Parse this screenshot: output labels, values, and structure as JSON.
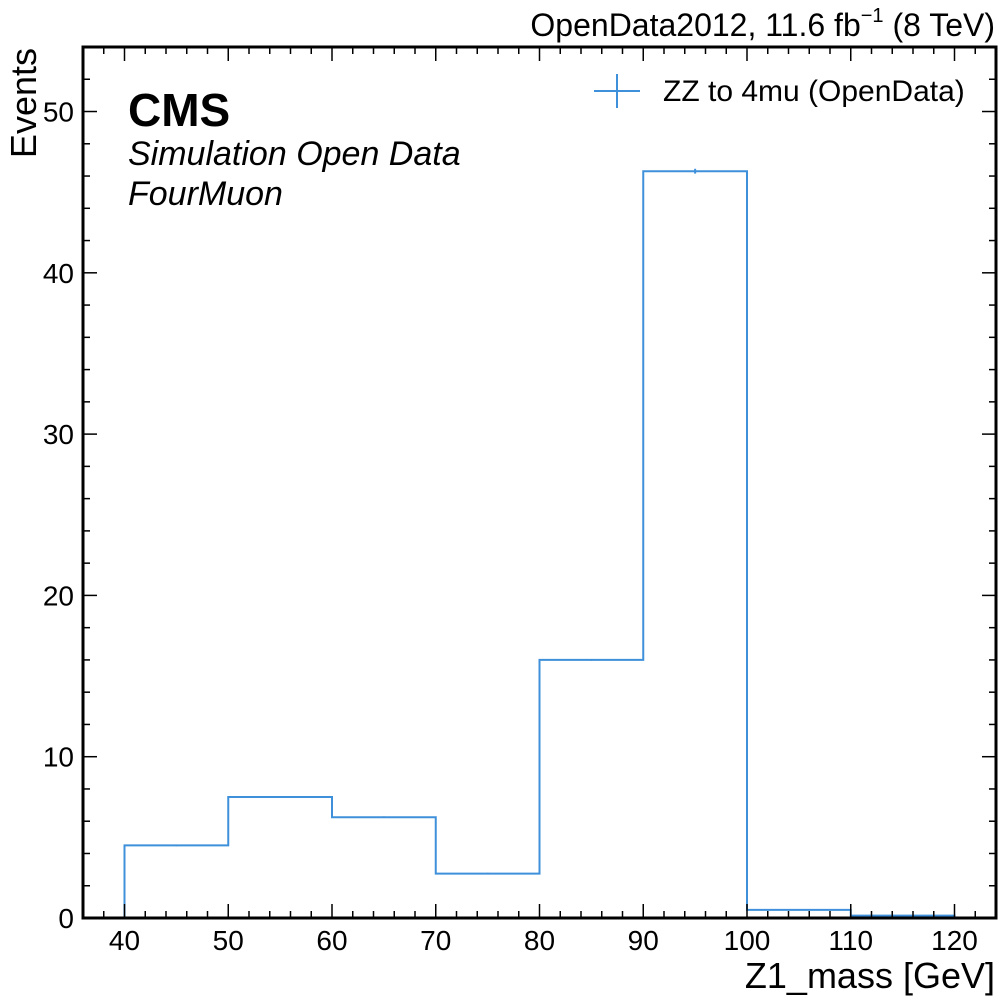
{
  "header": {
    "lumi": "OpenData2012, 11.6 fb",
    "lumi_sup": "−1",
    "energy": "(8 TeV)"
  },
  "labels": {
    "experiment": "CMS",
    "line1": "Simulation Open Data",
    "line2": "FourMuon"
  },
  "colors": {
    "series": "#3f90da",
    "axis": "#000000",
    "background": "#ffffff"
  },
  "chart_data": {
    "type": "histogram",
    "xlabel": "Z1_mass [GeV]",
    "ylabel": "Events",
    "xlim": [
      36,
      124
    ],
    "ylim": [
      0,
      54
    ],
    "x_ticks": [
      40,
      50,
      60,
      70,
      80,
      90,
      100,
      110,
      120
    ],
    "y_ticks": [
      0,
      10,
      20,
      30,
      40,
      50
    ],
    "bin_edges": [
      40,
      50,
      60,
      70,
      80,
      90,
      100,
      110,
      120
    ],
    "series": [
      {
        "name": "ZZ to 4mu (OpenData)",
        "values": [
          4.5,
          7.5,
          6.25,
          2.75,
          16.0,
          46.3,
          0.5,
          0.15
        ],
        "errors": [
          0.05,
          0.05,
          0.05,
          0.05,
          0.05,
          0.15,
          0.02,
          0.01
        ]
      }
    ],
    "legend_position": "top-right",
    "grid": false
  }
}
